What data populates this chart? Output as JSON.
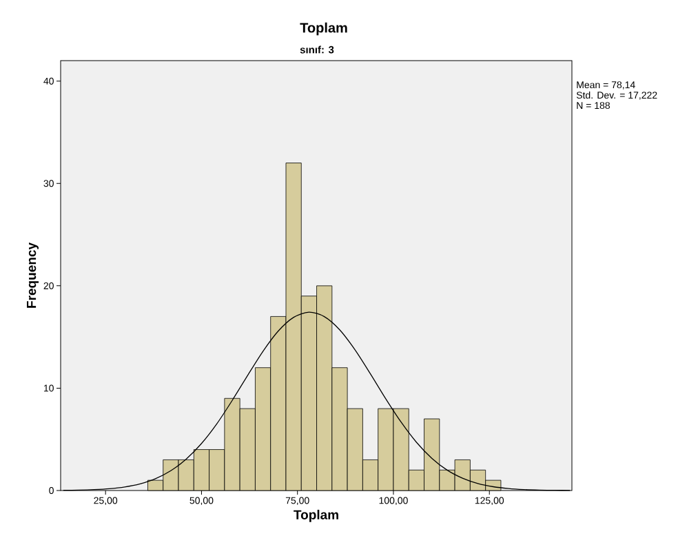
{
  "chart_data": {
    "type": "histogram",
    "title": "Toplam",
    "subtitle": "sınıf: 3",
    "xlabel": "Toplam",
    "ylabel": "Frequency",
    "annotations": [
      "Mean = 78,14",
      "Std. Dev. = 17,222",
      "N = 188"
    ],
    "xlim": [
      13.3,
      146.5
    ],
    "ylim": [
      0,
      42
    ],
    "xticks": [
      {
        "value": 25,
        "label": "25,00"
      },
      {
        "value": 50,
        "label": "50,00"
      },
      {
        "value": 75,
        "label": "75,00"
      },
      {
        "value": 100,
        "label": "100,00"
      },
      {
        "value": 125,
        "label": "125,00"
      }
    ],
    "yticks": [
      0,
      10,
      20,
      30,
      40
    ],
    "series": [
      {
        "color": "#d6cc9c",
        "bins": [
          36,
          40,
          44,
          48,
          52,
          56,
          60,
          64,
          68,
          72,
          76,
          80,
          84,
          88,
          92,
          96,
          100,
          104,
          108,
          112,
          116,
          120,
          124,
          128
        ],
        "values": [
          1,
          3,
          3,
          4,
          4,
          9,
          8,
          12,
          17,
          32,
          19,
          20,
          12,
          8,
          3,
          8,
          8,
          2,
          7,
          2,
          3,
          2,
          1
        ]
      },
      {
        "type": "line",
        "color": "#000000",
        "x": [
          14,
          18,
          22,
          26,
          30,
          34,
          38,
          42,
          46,
          50,
          54,
          58,
          62,
          66,
          70,
          74,
          78,
          82,
          86,
          90,
          94,
          98,
          102,
          106,
          110,
          114,
          118,
          122,
          126,
          130,
          134,
          138,
          142,
          146
        ],
        "values": [
          0.02,
          0.04,
          0.09,
          0.18,
          0.35,
          0.65,
          1.15,
          1.93,
          3.06,
          4.59,
          6.52,
          8.8,
          11.23,
          13.59,
          15.58,
          16.92,
          17.42,
          16.99,
          15.7,
          13.74,
          11.4,
          8.96,
          6.68,
          4.71,
          3.15,
          1.99,
          1.2,
          0.68,
          0.37,
          0.19,
          0.09,
          0.04,
          0.02,
          0.01
        ]
      }
    ]
  }
}
